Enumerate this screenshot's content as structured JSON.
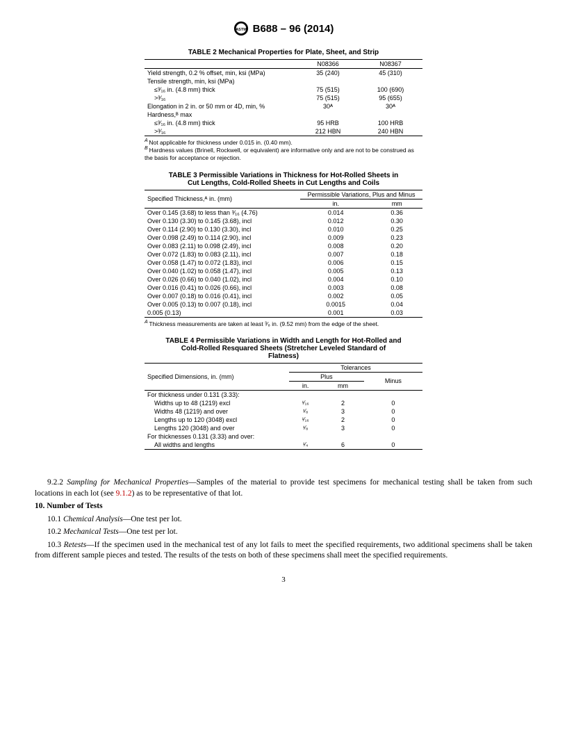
{
  "header": {
    "designation": "B688 – 96 (2014)"
  },
  "table2": {
    "title": "TABLE 2 Mechanical Properties for Plate, Sheet, and Strip",
    "col1": "N08366",
    "col2": "N08367",
    "rows": [
      {
        "label": "Yield strength, 0.2 % offset, min, ksi (MPa)",
        "v1": "35 (240)",
        "v2": "45 (310)",
        "ind": false
      },
      {
        "label": "Tensile strength, min, ksi (MPa)",
        "v1": "",
        "v2": "",
        "ind": false
      },
      {
        "label": "≤³⁄₁₆ in. (4.8 mm) thick",
        "v1": "75 (515)",
        "v2": "100 (690)",
        "ind": true
      },
      {
        "label": ">³⁄₁₆",
        "v1": "75 (515)",
        "v2": "95 (655)",
        "ind": true
      },
      {
        "label": "Elongation in 2 in. or 50 mm or 4D, min, %",
        "v1": "30ᴬ",
        "v2": "30ᴬ",
        "ind": false
      },
      {
        "label": "Hardness,ᴮ max",
        "v1": "",
        "v2": "",
        "ind": false
      },
      {
        "label": "≤³⁄₁₆ in. (4.8 mm) thick",
        "v1": "95 HRB",
        "v2": "100 HRB",
        "ind": true
      },
      {
        "label": ">³⁄₁₆",
        "v1": "212 HBN",
        "v2": "240 HBN",
        "ind": true
      }
    ],
    "fnA": "Not applicable for thickness under 0.015 in. (0.40 mm).",
    "fnB": "Hardness values (Brinell, Rockwell, or equivalent) are informative only and are not to be construed as the basis for acceptance or rejection."
  },
  "table3": {
    "title": "TABLE 3 Permissible Variations in Thickness for Hot-Rolled Sheets in Cut Lengths, Cold-Rolled Sheets in Cut Lengths and Coils",
    "colh_left": "Specified Thickness,ᴬ in. (mm)",
    "colh_right": "Permissible Variations, Plus and Minus",
    "sub_in": "in.",
    "sub_mm": "mm",
    "rows": [
      {
        "t": "Over 0.145 (3.68) to less than ³⁄₁₆ (4.76)",
        "in": "0.014",
        "mm": "0.36"
      },
      {
        "t": "Over 0.130 (3.30) to 0.145 (3.68), incl",
        "in": "0.012",
        "mm": "0.30"
      },
      {
        "t": "Over 0.114 (2.90) to 0.130 (3.30), incl",
        "in": "0.010",
        "mm": "0.25"
      },
      {
        "t": "Over 0.098 (2.49) to 0.114 (2.90), incl",
        "in": "0.009",
        "mm": "0.23"
      },
      {
        "t": "Over 0.083 (2.11) to 0.098 (2.49), incl",
        "in": "0.008",
        "mm": "0.20"
      },
      {
        "t": "Over 0.072 (1.83) to 0.083 (2.11), incl",
        "in": "0.007",
        "mm": "0.18"
      },
      {
        "t": "Over 0.058 (1.47) to 0.072 (1.83), incl",
        "in": "0.006",
        "mm": "0.15"
      },
      {
        "t": "Over 0.040 (1.02) to 0.058 (1.47), incl",
        "in": "0.005",
        "mm": "0.13"
      },
      {
        "t": "Over 0.026 (0.66) to 0.040 (1.02), incl",
        "in": "0.004",
        "mm": "0.10"
      },
      {
        "t": "Over 0.016 (0.41) to 0.026 (0.66), incl",
        "in": "0.003",
        "mm": "0.08"
      },
      {
        "t": "Over 0.007 (0.18) to 0.016 (0.41), incl",
        "in": "0.002",
        "mm": "0.05"
      },
      {
        "t": "Over 0.005 (0.13) to 0.007 (0.18), incl",
        "in": "0.0015",
        "mm": "0.04"
      },
      {
        "t": "0.005 (0.13)",
        "in": "0.001",
        "mm": "0.03"
      }
    ],
    "fnA": "Thickness measurements are taken at least ³⁄₈ in. (9.52 mm) from the edge of the sheet."
  },
  "table4": {
    "title": "TABLE 4 Permissible Variations in Width and Length for Hot-Rolled and Cold-Rolled Resquared Sheets (Stretcher Leveled Standard of Flatness)",
    "h_dim": "Specified Dimensions, in. (mm)",
    "h_tol": "Tolerances",
    "h_plus": "Plus",
    "h_minus": "Minus",
    "h_in": "in.",
    "h_mm": "mm",
    "rows": [
      {
        "label": "For thickness under 0.131 (3.33):",
        "in": "",
        "mm": "",
        "minus": "",
        "ind": false
      },
      {
        "label": "Widths up to 48 (1219) excl",
        "in": "¹⁄₁₆",
        "mm": "2",
        "minus": "0",
        "ind": true
      },
      {
        "label": "Widths 48 (1219) and over",
        "in": "¹⁄₈",
        "mm": "3",
        "minus": "0",
        "ind": true
      },
      {
        "label": "Lengths up to 120 (3048) excl",
        "in": "¹⁄₁₆",
        "mm": "2",
        "minus": "0",
        "ind": true
      },
      {
        "label": "Lengths 120 (3048) and over",
        "in": "¹⁄₈",
        "mm": "3",
        "minus": "0",
        "ind": true
      },
      {
        "label": "For thicknesses 0.131 (3.33) and over:",
        "in": "",
        "mm": "",
        "minus": "",
        "ind": false
      },
      {
        "label": "All widths and lengths",
        "in": "¹⁄₄",
        "mm": "6",
        "minus": "0",
        "ind": true
      }
    ]
  },
  "body": {
    "p922_num": "9.2.2 ",
    "p922_head": "Sampling for Mechanical Properties",
    "p922_text": "—Samples of the material to provide test specimens for mechanical testing shall be taken from such locations in each lot (see ",
    "p922_ref": "9.1.2",
    "p922_tail": ") as to be representative of that lot.",
    "s10": "10.  Number of Tests",
    "p101": "10.1 ",
    "p101_head": "Chemical Analysis",
    "p101_tail": "—One test per lot.",
    "p102": "10.2 ",
    "p102_head": "Mechanical Tests",
    "p102_tail": "—One test per lot.",
    "p103": "10.3 ",
    "p103_head": "Retests",
    "p103_tail": "—If the specimen used in the mechanical test of any lot fails to meet the specified requirements, two additional specimens shall be taken from different sample pieces and tested. The results of the tests on both of these specimens shall meet the specified requirements."
  },
  "page": "3"
}
